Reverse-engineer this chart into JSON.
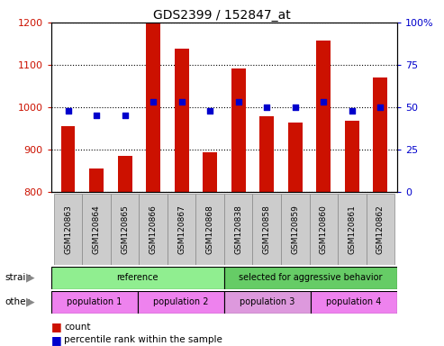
{
  "title": "GDS2399 / 152847_at",
  "samples": [
    "GSM120863",
    "GSM120864",
    "GSM120865",
    "GSM120866",
    "GSM120867",
    "GSM120868",
    "GSM120838",
    "GSM120858",
    "GSM120859",
    "GSM120860",
    "GSM120861",
    "GSM120862"
  ],
  "counts": [
    955,
    855,
    885,
    1197,
    1138,
    893,
    1092,
    978,
    963,
    1158,
    968,
    1070
  ],
  "percentiles": [
    48,
    45,
    45,
    53,
    53,
    48,
    53,
    50,
    50,
    53,
    48,
    50
  ],
  "ylim_left": [
    800,
    1200
  ],
  "ylim_right": [
    0,
    100
  ],
  "yticks_left": [
    800,
    900,
    1000,
    1100,
    1200
  ],
  "yticks_right": [
    0,
    25,
    50,
    75,
    100
  ],
  "ytick_right_labels": [
    "0",
    "25",
    "50",
    "75",
    "100%"
  ],
  "bar_color": "#cc1100",
  "dot_color": "#0000cc",
  "strain_groups": [
    {
      "label": "reference",
      "start": 0,
      "end": 6,
      "color": "#90ee90"
    },
    {
      "label": "selected for aggressive behavior",
      "start": 6,
      "end": 12,
      "color": "#66cc66"
    }
  ],
  "other_groups": [
    {
      "label": "population 1",
      "start": 0,
      "end": 3,
      "color": "#ee82ee"
    },
    {
      "label": "population 2",
      "start": 3,
      "end": 6,
      "color": "#ee82ee"
    },
    {
      "label": "population 3",
      "start": 6,
      "end": 9,
      "color": "#dd99dd"
    },
    {
      "label": "population 4",
      "start": 9,
      "end": 12,
      "color": "#ee82ee"
    }
  ],
  "legend_count_color": "#cc1100",
  "legend_dot_color": "#0000cc",
  "bar_width": 0.5,
  "left_label_color": "#cc1100",
  "right_label_color": "#0000cc",
  "tick_box_color": "#cccccc",
  "tick_box_edge": "#888888"
}
